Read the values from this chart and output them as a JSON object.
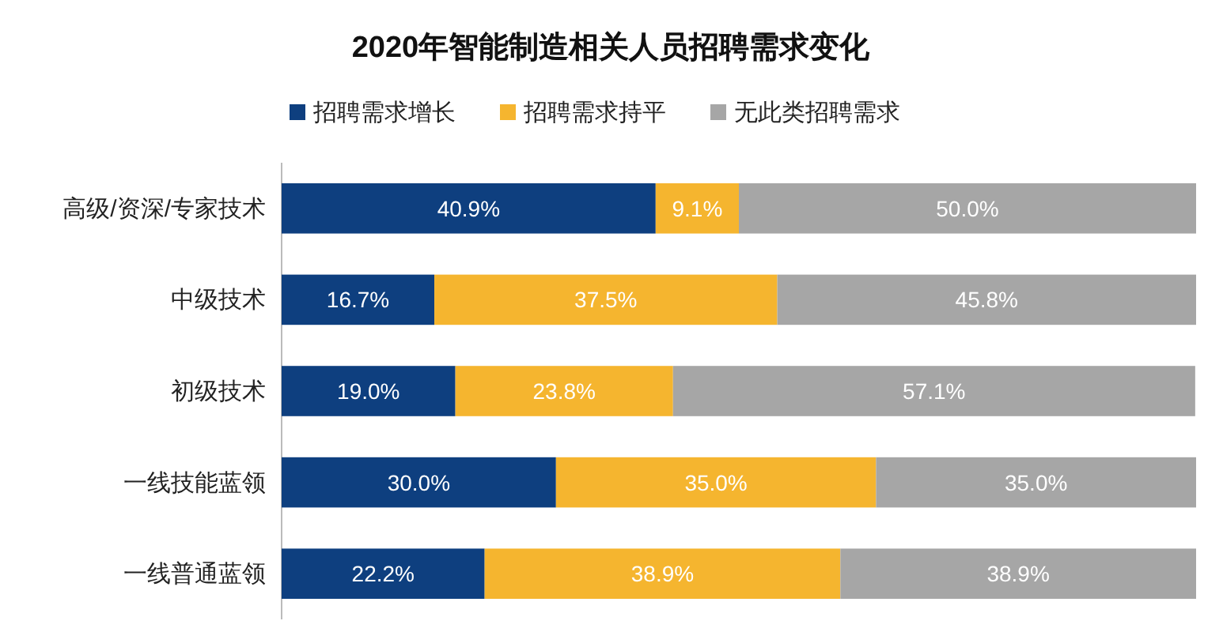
{
  "chart_data": {
    "type": "bar",
    "orientation": "horizontal",
    "stacked": true,
    "title": "2020年智能制造相关人员招聘需求变化",
    "categories": [
      "高级/资深/专家技术",
      "中级技术",
      "初级技术",
      "一线技能蓝领",
      "一线普通蓝领"
    ],
    "series": [
      {
        "name": "招聘需求增长",
        "color": "#0e3f7f",
        "values": [
          40.9,
          16.7,
          19.0,
          30.0,
          22.2
        ],
        "value_labels": [
          "40.9%",
          "16.7%",
          "19.0%",
          "30.0%",
          "22.2%"
        ]
      },
      {
        "name": "招聘需求持平",
        "color": "#f5b52f",
        "values": [
          9.1,
          37.5,
          23.8,
          35.0,
          38.9
        ],
        "value_labels": [
          "9.1%",
          "37.5%",
          "23.8%",
          "35.0%",
          "38.9%"
        ]
      },
      {
        "name": "无此类招聘需求",
        "color": "#a6a6a6",
        "values": [
          50.0,
          45.8,
          57.1,
          35.0,
          38.9
        ],
        "value_labels": [
          "50.0%",
          "45.8%",
          "57.1%",
          "35.0%",
          "38.9%"
        ]
      }
    ],
    "legend": "top"
  }
}
